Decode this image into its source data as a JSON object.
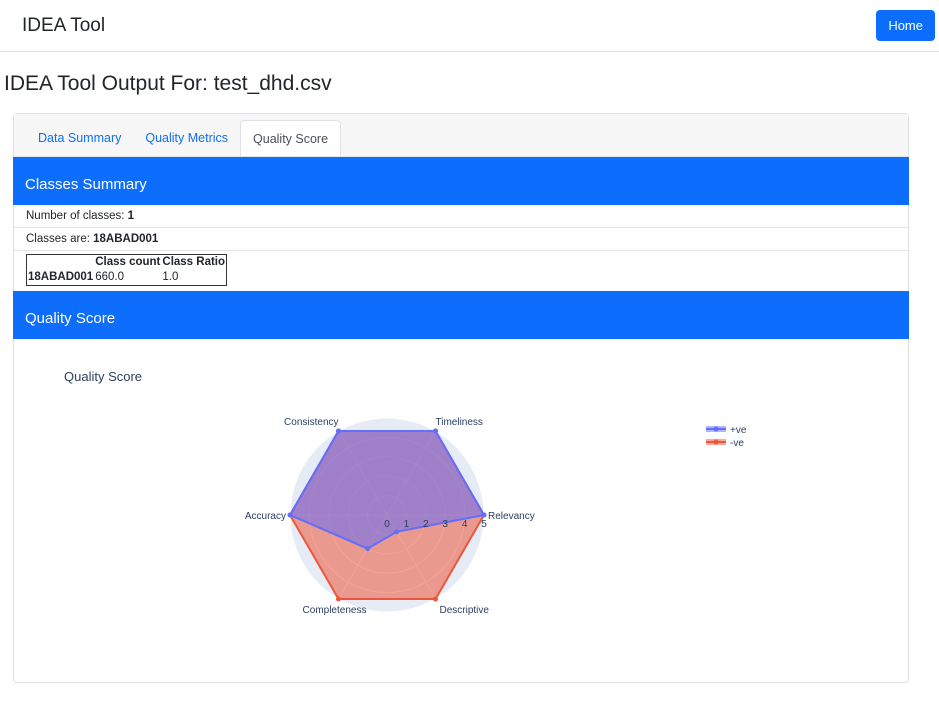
{
  "nav": {
    "brand": "IDEA Tool",
    "home_label": "Home"
  },
  "page_title": "IDEA Tool Output For: test_dhd.csv",
  "tabs": [
    {
      "label": "Data Summary"
    },
    {
      "label": "Quality Metrics"
    },
    {
      "label": "Quality Score",
      "active": true
    }
  ],
  "classes_summary": {
    "header": "Classes Summary",
    "num_label": "Number of classes: ",
    "num_value": "1",
    "classes_label": "Classes are: ",
    "classes_value": "18ABAD001",
    "table": {
      "columns": [
        "",
        "Class count",
        "Class Ratio"
      ],
      "rows": [
        [
          "18ABAD001",
          "660.0",
          "1.0"
        ]
      ]
    }
  },
  "quality_score": {
    "header": "Quality Score"
  },
  "chart_data": {
    "type": "radar",
    "title": "Quality Score",
    "categories": [
      "Relevancy",
      "Timeliness",
      "Consistency",
      "Accuracy",
      "Completeness",
      "Descriptive"
    ],
    "radial_range": [
      0,
      5
    ],
    "radial_ticks": [
      "0",
      "1",
      "2",
      "3",
      "4",
      "5"
    ],
    "legend_placement": "top-right",
    "series": [
      {
        "name": "+ve",
        "values": [
          5,
          5,
          5,
          5,
          2,
          1
        ],
        "color": "#636efa"
      },
      {
        "name": "-ve",
        "values": [
          5,
          5,
          5,
          5,
          5,
          5
        ],
        "color": "#ef553b"
      }
    ]
  }
}
